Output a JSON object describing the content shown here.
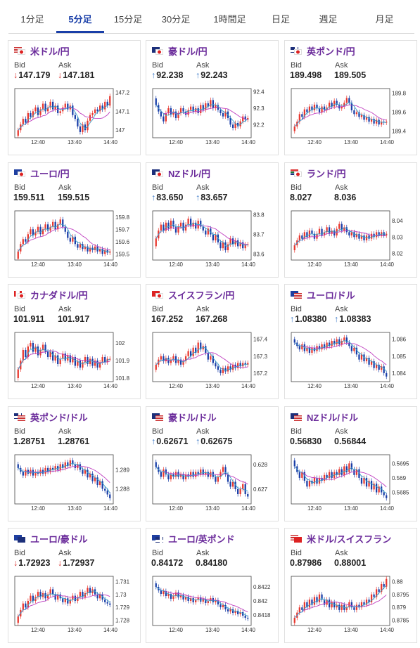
{
  "tabs": [
    {
      "label": "1分足",
      "active": false
    },
    {
      "label": "5分足",
      "active": true
    },
    {
      "label": "15分足",
      "active": false
    },
    {
      "label": "30分足",
      "active": false
    },
    {
      "label": "1時間足",
      "active": false
    },
    {
      "label": "日足",
      "active": false
    },
    {
      "label": "週足",
      "active": false
    },
    {
      "label": "月足",
      "active": false
    }
  ],
  "labels": {
    "bid": "Bid",
    "ask": "Ask"
  },
  "colors": {
    "up": "#e8382f",
    "down": "#1a3fa8",
    "ma": "#c040c0",
    "ma2": "#3aa0c8",
    "pair": "#6a2a9a"
  },
  "cards": [
    {
      "pair": "米ドル/円",
      "flag": "us-jp-flag-icon",
      "bid": "147.179",
      "ask": "147.181",
      "arrow": "down",
      "x_labels": [
        "12:40",
        "13:40",
        "14:40"
      ],
      "y_labels": [
        "147.2",
        "147.1",
        "147"
      ],
      "y_range": [
        146.96,
        147.22
      ],
      "candles": [
        147.0,
        147.03,
        147.06,
        147.04,
        147.09,
        147.07,
        147.1,
        147.12,
        147.08,
        147.11,
        147.14,
        147.1,
        147.12,
        147.15,
        147.11,
        147.13,
        147.09,
        147.1,
        147.12,
        147.14,
        147.11,
        147.13,
        147.08,
        147.06,
        147.02,
        146.99,
        147.03,
        147.0,
        147.05,
        147.08,
        147.09,
        147.11,
        147.1,
        147.13,
        147.11,
        147.15,
        147.13,
        147.18
      ]
    },
    {
      "pair": "豪ドル/円",
      "flag": "au-jp-flag-icon",
      "bid": "92.238",
      "ask": "92.243",
      "arrow": "up",
      "x_labels": [
        "12:40",
        "13:40",
        "14:40"
      ],
      "y_labels": [
        "92.4",
        "92.3",
        "92.2"
      ],
      "y_range": [
        92.12,
        92.42
      ],
      "candles": [
        92.32,
        92.28,
        92.25,
        92.22,
        92.27,
        92.3,
        92.26,
        92.28,
        92.24,
        92.27,
        92.3,
        92.28,
        92.26,
        92.29,
        92.31,
        92.28,
        92.3,
        92.27,
        92.32,
        92.29,
        92.33,
        92.31,
        92.35,
        92.3,
        92.32,
        92.29,
        92.27,
        92.25,
        92.28,
        92.24,
        92.2,
        92.18,
        92.21,
        92.19,
        92.22,
        92.25,
        92.23,
        92.24
      ]
    },
    {
      "pair": "英ポンド/円",
      "flag": "gb-jp-flag-icon",
      "bid": "189.498",
      "ask": "189.505",
      "arrow": "none",
      "x_labels": [
        "12:40",
        "13:40",
        "14:40"
      ],
      "y_labels": [
        "189.8",
        "189.6",
        "189.4"
      ],
      "y_range": [
        189.33,
        189.85
      ],
      "candles": [
        189.45,
        189.5,
        189.58,
        189.55,
        189.63,
        189.6,
        189.66,
        189.62,
        189.68,
        189.64,
        189.6,
        189.66,
        189.62,
        189.65,
        189.7,
        189.66,
        189.72,
        189.68,
        189.64,
        189.66,
        189.7,
        189.75,
        189.7,
        189.62,
        189.58,
        189.6,
        189.55,
        189.57,
        189.52,
        189.55,
        189.5,
        189.53,
        189.48,
        189.52,
        189.47,
        189.5,
        189.49,
        189.5
      ]
    },
    {
      "pair": "ユーロ/円",
      "flag": "eu-jp-flag-icon",
      "bid": "159.511",
      "ask": "159.515",
      "arrow": "none",
      "x_labels": [
        "12:40",
        "13:40",
        "14:40"
      ],
      "y_labels": [
        "159.8",
        "159.7",
        "159.6",
        "159.5"
      ],
      "y_range": [
        159.45,
        159.85
      ],
      "candles": [
        159.52,
        159.58,
        159.62,
        159.6,
        159.66,
        159.7,
        159.65,
        159.68,
        159.72,
        159.66,
        159.7,
        159.74,
        159.69,
        159.72,
        159.76,
        159.7,
        159.74,
        159.78,
        159.72,
        159.68,
        159.63,
        159.6,
        159.64,
        159.58,
        159.55,
        159.58,
        159.54,
        159.56,
        159.52,
        159.55,
        159.53,
        159.56,
        159.52,
        159.54,
        159.5,
        159.53,
        159.51,
        159.52
      ]
    },
    {
      "pair": "NZドル/円",
      "flag": "nz-jp-flag-icon",
      "bid": "83.650",
      "ask": "83.657",
      "arrow": "up",
      "x_labels": [
        "12:40",
        "13:40",
        "14:40"
      ],
      "y_labels": [
        "83.8",
        "83.7",
        "83.6"
      ],
      "y_range": [
        83.57,
        83.82
      ],
      "candles": [
        83.68,
        83.72,
        83.75,
        83.72,
        83.76,
        83.73,
        83.77,
        83.74,
        83.71,
        83.74,
        83.76,
        83.72,
        83.75,
        83.78,
        83.74,
        83.76,
        83.73,
        83.77,
        83.74,
        83.72,
        83.7,
        83.73,
        83.7,
        83.67,
        83.7,
        83.66,
        83.63,
        83.66,
        83.62,
        83.65,
        83.68,
        83.65,
        83.67,
        83.64,
        83.66,
        83.63,
        83.65,
        83.65
      ]
    },
    {
      "pair": "ランド/円",
      "flag": "za-jp-flag-icon",
      "bid": "8.027",
      "ask": "8.036",
      "arrow": "none",
      "x_labels": [
        "12:40",
        "13:40",
        "14:40"
      ],
      "y_labels": [
        "8.04",
        "8.03",
        "8.02"
      ],
      "y_range": [
        8.016,
        8.046
      ],
      "candles": [
        8.025,
        8.028,
        8.031,
        8.029,
        8.033,
        8.03,
        8.034,
        8.032,
        8.029,
        8.032,
        8.035,
        8.031,
        8.033,
        8.036,
        8.032,
        8.034,
        8.031,
        8.035,
        8.038,
        8.034,
        8.036,
        8.033,
        8.031,
        8.033,
        8.03,
        8.032,
        8.029,
        8.031,
        8.028,
        8.031,
        8.029,
        8.032,
        8.03,
        8.033,
        8.031,
        8.033,
        8.031,
        8.032
      ]
    },
    {
      "pair": "カナダドル/円",
      "flag": "ca-jp-flag-icon",
      "bid": "101.911",
      "ask": "101.917",
      "arrow": "none",
      "x_labels": [
        "12:40",
        "13:40",
        "14:40"
      ],
      "y_labels": [
        "102",
        "101.9",
        "101.8"
      ],
      "y_range": [
        101.78,
        102.06
      ],
      "candles": [
        101.85,
        101.9,
        101.96,
        101.92,
        101.98,
        102.0,
        101.95,
        101.98,
        101.93,
        101.96,
        101.99,
        101.95,
        101.92,
        101.95,
        101.9,
        101.93,
        101.88,
        101.91,
        101.94,
        101.9,
        101.93,
        101.89,
        101.92,
        101.87,
        101.9,
        101.86,
        101.89,
        101.92,
        101.88,
        101.91,
        101.87,
        101.9,
        101.86,
        101.89,
        101.92,
        101.89,
        101.91,
        101.91
      ]
    },
    {
      "pair": "スイスフラン/円",
      "flag": "ch-jp-flag-icon",
      "bid": "167.252",
      "ask": "167.268",
      "arrow": "none",
      "x_labels": [
        "12:40",
        "13:40",
        "14:40"
      ],
      "y_labels": [
        "167.4",
        "167.3",
        "167.2"
      ],
      "y_range": [
        167.15,
        167.44
      ],
      "candles": [
        167.25,
        167.28,
        167.3,
        167.27,
        167.29,
        167.26,
        167.28,
        167.3,
        167.26,
        167.28,
        167.25,
        167.27,
        167.3,
        167.33,
        167.3,
        167.35,
        167.32,
        167.38,
        167.34,
        167.36,
        167.32,
        167.28,
        167.3,
        167.26,
        167.24,
        167.22,
        167.2,
        167.23,
        167.21,
        167.24,
        167.22,
        167.25,
        167.23,
        167.26,
        167.24,
        167.26,
        167.25,
        167.26
      ]
    },
    {
      "pair": "ユーロ/ドル",
      "flag": "eu-us-flag-icon",
      "bid": "1.08380",
      "ask": "1.08383",
      "arrow": "up",
      "x_labels": [
        "12:40",
        "13:40",
        "14:40"
      ],
      "y_labels": [
        "1.086",
        "1.085",
        "1.084"
      ],
      "y_range": [
        1.0835,
        1.0864
      ],
      "candles": [
        1.0858,
        1.0856,
        1.0854,
        1.0857,
        1.0853,
        1.0855,
        1.0852,
        1.0855,
        1.0853,
        1.0856,
        1.0854,
        1.0857,
        1.0855,
        1.0858,
        1.0856,
        1.0859,
        1.0857,
        1.086,
        1.0857,
        1.0859,
        1.0861,
        1.0858,
        1.0856,
        1.0853,
        1.0855,
        1.0851,
        1.0848,
        1.0851,
        1.0847,
        1.0849,
        1.0845,
        1.0847,
        1.0843,
        1.0845,
        1.0842,
        1.0844,
        1.084,
        1.0838
      ]
    },
    {
      "pair": "英ポンド/ドル",
      "flag": "gb-us-flag-icon",
      "bid": "1.28751",
      "ask": "1.28761",
      "arrow": "none",
      "x_labels": [
        "12:40",
        "13:40",
        "14:40"
      ],
      "y_labels": [
        "1.289",
        "1.288"
      ],
      "y_range": [
        1.2872,
        1.2898
      ],
      "candles": [
        1.2891,
        1.2889,
        1.2887,
        1.289,
        1.2888,
        1.289,
        1.2887,
        1.2889,
        1.2888,
        1.289,
        1.2888,
        1.2891,
        1.2889,
        1.2891,
        1.289,
        1.2892,
        1.289,
        1.2893,
        1.2891,
        1.2894,
        1.2892,
        1.2895,
        1.2893,
        1.2891,
        1.2893,
        1.289,
        1.2888,
        1.289,
        1.2886,
        1.2888,
        1.2884,
        1.2886,
        1.2882,
        1.2884,
        1.288,
        1.2879,
        1.2877,
        1.2875
      ]
    },
    {
      "pair": "豪ドル/ドル",
      "flag": "au-us-flag-icon",
      "bid": "0.62671",
      "ask": "0.62675",
      "arrow": "up",
      "x_labels": [
        "12:40",
        "13:40",
        "14:40"
      ],
      "y_labels": [
        "0.628",
        "0.627"
      ],
      "y_range": [
        0.6264,
        0.6284
      ],
      "candles": [
        0.6279,
        0.6277,
        0.6275,
        0.6278,
        0.6276,
        0.6274,
        0.6276,
        0.6275,
        0.6277,
        0.6275,
        0.6276,
        0.6274,
        0.6276,
        0.6275,
        0.6277,
        0.6275,
        0.6277,
        0.6276,
        0.6278,
        0.6276,
        0.6277,
        0.6275,
        0.6277,
        0.6275,
        0.6273,
        0.6275,
        0.6277,
        0.6279,
        0.6276,
        0.6273,
        0.6271,
        0.6273,
        0.627,
        0.6268,
        0.627,
        0.6272,
        0.6268,
        0.6267
      ]
    },
    {
      "pair": "NZドル/ドル",
      "flag": "nz-us-flag-icon",
      "bid": "0.56830",
      "ask": "0.56844",
      "arrow": "none",
      "x_labels": [
        "12:40",
        "13:40",
        "14:40"
      ],
      "y_labels": [
        "0.5695",
        "0.569",
        "0.5685"
      ],
      "y_range": [
        0.5681,
        0.5698
      ],
      "candles": [
        0.5694,
        0.5692,
        0.569,
        0.5692,
        0.5689,
        0.5687,
        0.5689,
        0.5688,
        0.569,
        0.5688,
        0.569,
        0.5689,
        0.5691,
        0.569,
        0.5692,
        0.569,
        0.5692,
        0.5691,
        0.5693,
        0.5691,
        0.5694,
        0.5692,
        0.5695,
        0.5693,
        0.5691,
        0.5693,
        0.569,
        0.5688,
        0.569,
        0.5687,
        0.5689,
        0.5686,
        0.5688,
        0.5685,
        0.5687,
        0.5685,
        0.5684,
        0.5683
      ]
    },
    {
      "pair": "ユーロ/豪ドル",
      "flag": "eu-au-flag-icon",
      "bid": "1.72923",
      "ask": "1.72937",
      "arrow": "down",
      "x_labels": [
        "12:40",
        "13:40",
        "14:40"
      ],
      "y_labels": [
        "1.731",
        "1.73",
        "1.729",
        "1.728"
      ],
      "y_range": [
        1.7276,
        1.7314
      ],
      "candles": [
        1.7283,
        1.7288,
        1.7293,
        1.729,
        1.7295,
        1.7299,
        1.7295,
        1.7298,
        1.7302,
        1.7298,
        1.7301,
        1.7297,
        1.73,
        1.7304,
        1.73,
        1.7296,
        1.73,
        1.7297,
        1.7294,
        1.7297,
        1.7293,
        1.7296,
        1.7299,
        1.7295,
        1.7298,
        1.7302,
        1.7298,
        1.7301,
        1.7305,
        1.7301,
        1.7304,
        1.73,
        1.7297,
        1.73,
        1.7296,
        1.7294,
        1.7293,
        1.7292
      ]
    },
    {
      "pair": "ユーロ/英ポンド",
      "flag": "eu-gb-flag-icon",
      "bid": "0.84172",
      "ask": "0.84180",
      "arrow": "none",
      "x_labels": [
        "12:40",
        "13:40",
        "14:40"
      ],
      "y_labels": [
        "0.8422",
        "0.842",
        "0.8418"
      ],
      "y_range": [
        0.84165,
        0.84235
      ],
      "candles": [
        0.8422,
        0.84215,
        0.8421,
        0.84214,
        0.84207,
        0.8421,
        0.84203,
        0.84207,
        0.84212,
        0.84205,
        0.84208,
        0.84202,
        0.84206,
        0.842,
        0.84204,
        0.84198,
        0.84202,
        0.84205,
        0.84199,
        0.84203,
        0.84197,
        0.842,
        0.84204,
        0.84198,
        0.84201,
        0.84195,
        0.84191,
        0.84194,
        0.84188,
        0.84185,
        0.84188,
        0.84183,
        0.84186,
        0.84181,
        0.84184,
        0.84179,
        0.84176,
        0.84175
      ]
    },
    {
      "pair": "米ドル/スイスフラン",
      "flag": "us-ch-flag-icon",
      "bid": "0.87986",
      "ask": "0.88001",
      "arrow": "none",
      "x_labels": [
        "12:40",
        "13:40",
        "14:40"
      ],
      "y_labels": [
        "0.88",
        "0.8795",
        "0.879",
        "0.8785"
      ],
      "y_range": [
        0.8783,
        0.8802
      ],
      "candles": [
        0.8786,
        0.8788,
        0.879,
        0.8789,
        0.8792,
        0.879,
        0.8793,
        0.8791,
        0.8794,
        0.8792,
        0.8795,
        0.8793,
        0.8791,
        0.8793,
        0.879,
        0.8792,
        0.879,
        0.8791,
        0.8789,
        0.8791,
        0.8789,
        0.879,
        0.8792,
        0.879,
        0.8789,
        0.8791,
        0.879,
        0.8792,
        0.8791,
        0.8793,
        0.8792,
        0.8795,
        0.8794,
        0.8797,
        0.8796,
        0.8799,
        0.8798,
        0.8801
      ]
    }
  ]
}
